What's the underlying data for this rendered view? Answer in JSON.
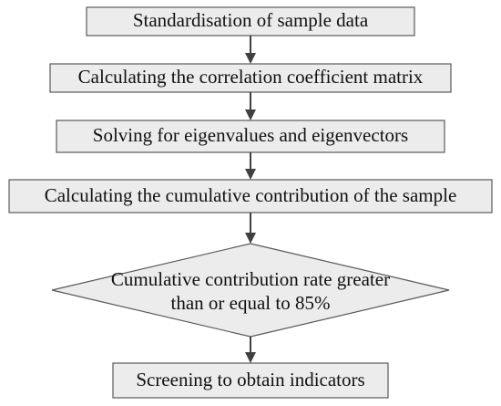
{
  "steps": [
    {
      "id": "standardisation",
      "text": "Standardisation of sample data"
    },
    {
      "id": "correlation-matrix",
      "text": "Calculating the correlation coefficient matrix"
    },
    {
      "id": "eigen",
      "text": "Solving for eigenvalues and eigenvectors"
    },
    {
      "id": "cumulative-contribution",
      "text": "Calculating the cumulative contribution of the sample"
    }
  ],
  "decision": {
    "line1": "Cumulative contribution rate greater",
    "line2": "than or equal to 85%"
  },
  "final_step": {
    "text": "Screening to obtain indicators"
  }
}
